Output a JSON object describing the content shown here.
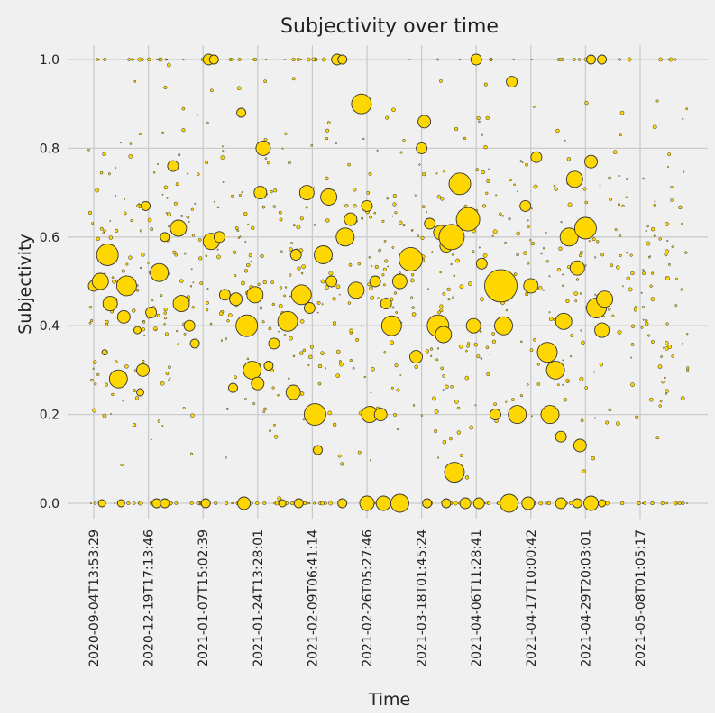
{
  "chart_data": {
    "type": "scatter",
    "title": "Subjectivity over time",
    "xlabel": "Time",
    "ylabel": "Subjectivity",
    "ylim": [
      -0.05,
      1.05
    ],
    "y_ticks": [
      "0.0",
      "0.2",
      "0.4",
      "0.6",
      "0.8",
      "1.0"
    ],
    "x_ticks": [
      "2020-09-04T13:53:29",
      "2020-12-19T17:13:46",
      "2021-01-07T15:02:39",
      "2021-01-24T13:28:01",
      "2021-02-09T06:41:14",
      "2021-02-26T05:27:46",
      "2021-03-18T01:45:24",
      "2021-04-06T11:28:41",
      "2021-04-17T10:00:42",
      "2021-04-29T20:03:01",
      "2021-05-08T01:05:17"
    ],
    "x_range_tick_positions": [
      -0.2,
      11.0
    ],
    "grid": true,
    "marker_color": "#FFD700",
    "marker_edge_color": "#333333",
    "background_color": "#f0f0f0",
    "grid_color": "#cbcbcb",
    "note_on_marker_size": "marker area varies per point",
    "points": [
      {
        "x": 0.0,
        "y": 0.49,
        "s": 6
      },
      {
        "x": 0.12,
        "y": 0.5,
        "s": 9
      },
      {
        "x": 0.25,
        "y": 0.56,
        "s": 12
      },
      {
        "x": 0.3,
        "y": 0.45,
        "s": 8
      },
      {
        "x": 0.45,
        "y": 0.28,
        "s": 10
      },
      {
        "x": 0.6,
        "y": 0.49,
        "s": 11
      },
      {
        "x": 0.55,
        "y": 0.42,
        "s": 7
      },
      {
        "x": 0.2,
        "y": 0.34,
        "s": 3
      },
      {
        "x": 0.8,
        "y": 0.39,
        "s": 4
      },
      {
        "x": 0.9,
        "y": 0.3,
        "s": 7
      },
      {
        "x": 0.85,
        "y": 0.25,
        "s": 4
      },
      {
        "x": 0.95,
        "y": 0.67,
        "s": 5
      },
      {
        "x": 1.05,
        "y": 0.43,
        "s": 6
      },
      {
        "x": 1.2,
        "y": 0.52,
        "s": 10
      },
      {
        "x": 1.3,
        "y": 0.6,
        "s": 5
      },
      {
        "x": 1.45,
        "y": 0.76,
        "s": 6
      },
      {
        "x": 1.55,
        "y": 0.62,
        "s": 9
      },
      {
        "x": 1.6,
        "y": 0.45,
        "s": 9
      },
      {
        "x": 1.75,
        "y": 0.4,
        "s": 6
      },
      {
        "x": 1.85,
        "y": 0.36,
        "s": 5
      },
      {
        "x": 2.1,
        "y": 1.0,
        "s": 6
      },
      {
        "x": 2.2,
        "y": 1.0,
        "s": 5
      },
      {
        "x": 2.15,
        "y": 0.59,
        "s": 9
      },
      {
        "x": 2.3,
        "y": 0.6,
        "s": 6
      },
      {
        "x": 2.4,
        "y": 0.47,
        "s": 6
      },
      {
        "x": 2.55,
        "y": 0.26,
        "s": 5
      },
      {
        "x": 2.6,
        "y": 0.46,
        "s": 7
      },
      {
        "x": 2.7,
        "y": 0.88,
        "s": 5
      },
      {
        "x": 2.8,
        "y": 0.4,
        "s": 12
      },
      {
        "x": 2.9,
        "y": 0.3,
        "s": 10
      },
      {
        "x": 2.95,
        "y": 0.47,
        "s": 9
      },
      {
        "x": 3.05,
        "y": 0.7,
        "s": 7
      },
      {
        "x": 3.1,
        "y": 0.8,
        "s": 8
      },
      {
        "x": 3.0,
        "y": 0.27,
        "s": 7
      },
      {
        "x": 3.2,
        "y": 0.31,
        "s": 5
      },
      {
        "x": 3.3,
        "y": 0.36,
        "s": 6
      },
      {
        "x": 3.55,
        "y": 0.41,
        "s": 11
      },
      {
        "x": 3.65,
        "y": 0.25,
        "s": 8
      },
      {
        "x": 3.7,
        "y": 0.56,
        "s": 6
      },
      {
        "x": 3.8,
        "y": 0.47,
        "s": 11
      },
      {
        "x": 3.9,
        "y": 0.7,
        "s": 8
      },
      {
        "x": 3.95,
        "y": 0.44,
        "s": 6
      },
      {
        "x": 4.05,
        "y": 0.2,
        "s": 12
      },
      {
        "x": 4.1,
        "y": 0.12,
        "s": 5
      },
      {
        "x": 4.2,
        "y": 0.56,
        "s": 10
      },
      {
        "x": 4.3,
        "y": 0.69,
        "s": 9
      },
      {
        "x": 4.35,
        "y": 0.5,
        "s": 6
      },
      {
        "x": 4.45,
        "y": 1.0,
        "s": 6
      },
      {
        "x": 4.55,
        "y": 1.0,
        "s": 5
      },
      {
        "x": 4.6,
        "y": 0.6,
        "s": 10
      },
      {
        "x": 4.7,
        "y": 0.64,
        "s": 7
      },
      {
        "x": 4.8,
        "y": 0.48,
        "s": 9
      },
      {
        "x": 4.9,
        "y": 0.9,
        "s": 11
      },
      {
        "x": 5.0,
        "y": 0.67,
        "s": 6
      },
      {
        "x": 5.05,
        "y": 0.2,
        "s": 9
      },
      {
        "x": 5.25,
        "y": 0.2,
        "s": 7
      },
      {
        "x": 5.15,
        "y": 0.5,
        "s": 6
      },
      {
        "x": 5.35,
        "y": 0.45,
        "s": 6
      },
      {
        "x": 5.45,
        "y": 0.4,
        "s": 11
      },
      {
        "x": 5.6,
        "y": 0.5,
        "s": 8
      },
      {
        "x": 5.8,
        "y": 0.55,
        "s": 13
      },
      {
        "x": 5.9,
        "y": 0.33,
        "s": 7
      },
      {
        "x": 6.0,
        "y": 0.8,
        "s": 6
      },
      {
        "x": 6.05,
        "y": 0.86,
        "s": 7
      },
      {
        "x": 6.15,
        "y": 0.63,
        "s": 6
      },
      {
        "x": 6.3,
        "y": 0.4,
        "s": 12
      },
      {
        "x": 6.35,
        "y": 0.61,
        "s": 8
      },
      {
        "x": 6.4,
        "y": 0.38,
        "s": 9
      },
      {
        "x": 6.45,
        "y": 0.58,
        "s": 7
      },
      {
        "x": 6.6,
        "y": 0.07,
        "s": 11
      },
      {
        "x": 6.55,
        "y": 0.6,
        "s": 14
      },
      {
        "x": 6.7,
        "y": 0.72,
        "s": 12
      },
      {
        "x": 6.85,
        "y": 0.64,
        "s": 13
      },
      {
        "x": 6.95,
        "y": 0.4,
        "s": 8
      },
      {
        "x": 7.0,
        "y": 1.0,
        "s": 6
      },
      {
        "x": 7.1,
        "y": 0.54,
        "s": 6
      },
      {
        "x": 7.35,
        "y": 0.2,
        "s": 6
      },
      {
        "x": 7.45,
        "y": 0.49,
        "s": 18
      },
      {
        "x": 7.5,
        "y": 0.4,
        "s": 10
      },
      {
        "x": 7.65,
        "y": 0.95,
        "s": 6
      },
      {
        "x": 7.75,
        "y": 0.2,
        "s": 10
      },
      {
        "x": 7.9,
        "y": 0.67,
        "s": 6
      },
      {
        "x": 8.0,
        "y": 0.49,
        "s": 8
      },
      {
        "x": 8.1,
        "y": 0.78,
        "s": 6
      },
      {
        "x": 8.3,
        "y": 0.34,
        "s": 11
      },
      {
        "x": 8.35,
        "y": 0.2,
        "s": 10
      },
      {
        "x": 8.45,
        "y": 0.3,
        "s": 10
      },
      {
        "x": 8.55,
        "y": 0.15,
        "s": 6
      },
      {
        "x": 8.6,
        "y": 0.41,
        "s": 9
      },
      {
        "x": 8.7,
        "y": 0.6,
        "s": 10
      },
      {
        "x": 8.8,
        "y": 0.73,
        "s": 9
      },
      {
        "x": 8.85,
        "y": 0.53,
        "s": 8
      },
      {
        "x": 8.9,
        "y": 0.13,
        "s": 7
      },
      {
        "x": 9.0,
        "y": 0.62,
        "s": 12
      },
      {
        "x": 9.1,
        "y": 0.77,
        "s": 7
      },
      {
        "x": 9.2,
        "y": 0.44,
        "s": 11
      },
      {
        "x": 9.3,
        "y": 0.39,
        "s": 8
      },
      {
        "x": 9.35,
        "y": 0.46,
        "s": 9
      },
      {
        "x": 9.3,
        "y": 1.0,
        "s": 5
      },
      {
        "x": 9.1,
        "y": 1.0,
        "s": 5
      }
    ],
    "zero_line_points": [
      {
        "x": 0.15,
        "s": 4
      },
      {
        "x": 0.5,
        "s": 4
      },
      {
        "x": 1.15,
        "s": 5
      },
      {
        "x": 1.3,
        "s": 5
      },
      {
        "x": 2.05,
        "s": 5
      },
      {
        "x": 2.75,
        "s": 7
      },
      {
        "x": 3.45,
        "s": 4
      },
      {
        "x": 3.75,
        "s": 5
      },
      {
        "x": 4.55,
        "s": 5
      },
      {
        "x": 5.0,
        "s": 8
      },
      {
        "x": 5.3,
        "s": 8
      },
      {
        "x": 5.6,
        "s": 10
      },
      {
        "x": 6.1,
        "s": 5
      },
      {
        "x": 6.45,
        "s": 5
      },
      {
        "x": 6.8,
        "s": 6
      },
      {
        "x": 7.05,
        "s": 6
      },
      {
        "x": 7.6,
        "s": 10
      },
      {
        "x": 7.95,
        "s": 7
      },
      {
        "x": 8.55,
        "s": 6
      },
      {
        "x": 8.85,
        "s": 5
      },
      {
        "x": 9.1,
        "s": 8
      },
      {
        "x": 9.3,
        "s": 4
      }
    ]
  }
}
